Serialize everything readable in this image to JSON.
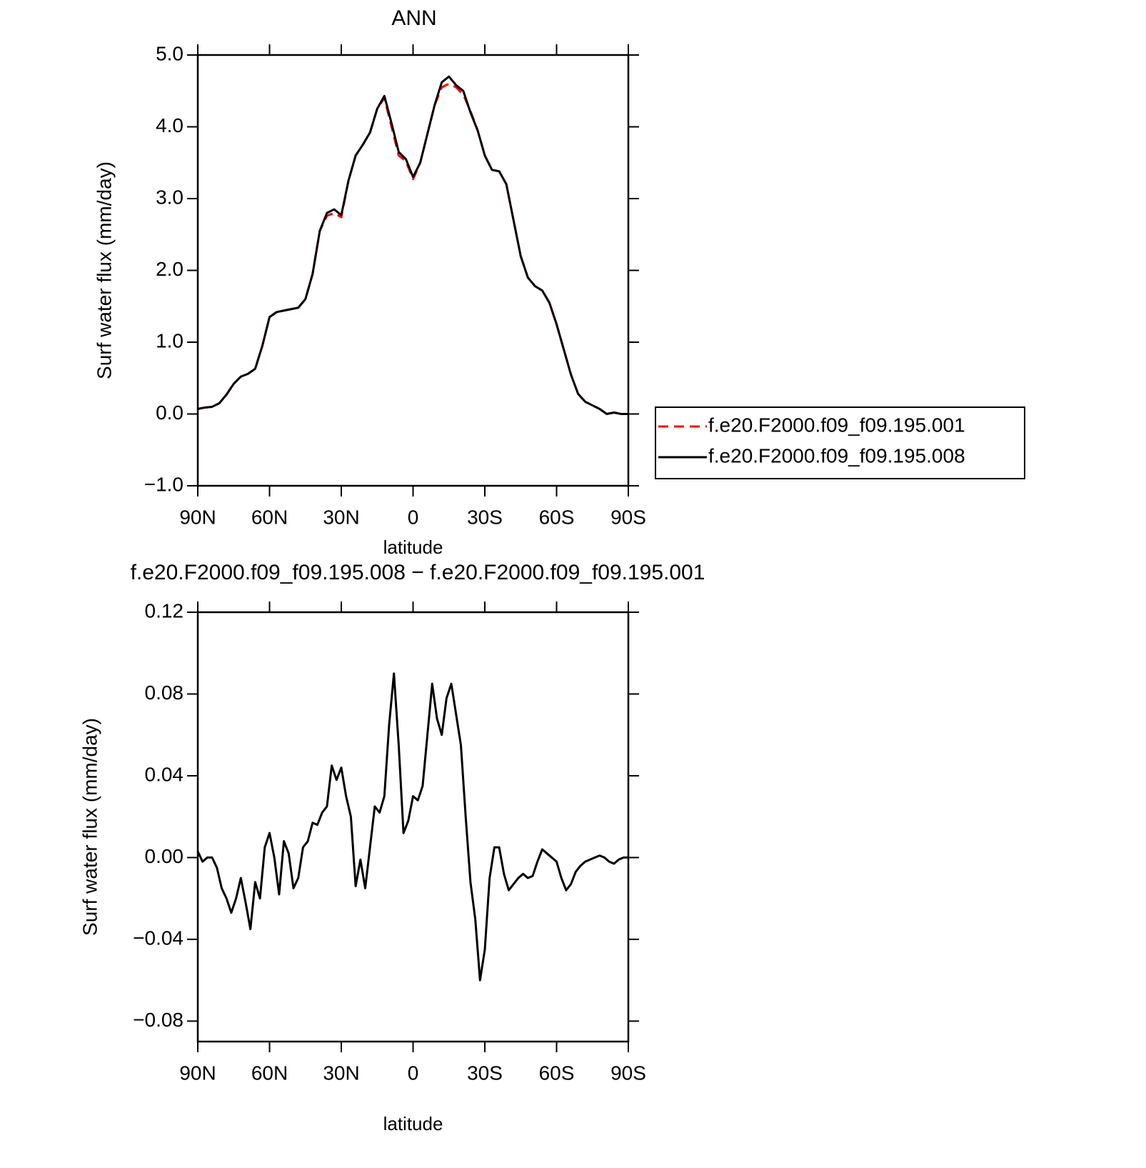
{
  "chart_data": [
    {
      "type": "line",
      "title": "ANN",
      "xlabel": "latitude",
      "ylabel": "Surf water flux (mm/day)",
      "x": [
        90,
        87,
        84,
        81,
        78,
        75,
        72,
        69,
        66,
        63,
        60,
        57,
        54,
        51,
        48,
        45,
        42,
        39,
        36,
        33,
        30,
        27,
        24,
        21,
        18,
        15,
        12,
        9,
        6,
        3,
        0,
        -3,
        -6,
        -9,
        -12,
        -15,
        -18,
        -21,
        -24,
        -27,
        -30,
        -33,
        -36,
        -39,
        -42,
        -45,
        -48,
        -51,
        -54,
        -57,
        -60,
        -63,
        -66,
        -69,
        -72,
        -75,
        -78,
        -81,
        -84,
        -87,
        -90
      ],
      "series": [
        {
          "name": "f.e20.F2000.f09_f09.195.001",
          "color": "#ff0000",
          "dash": "dashed",
          "values": [
            0.07,
            0.09,
            0.1,
            0.15,
            0.27,
            0.42,
            0.52,
            0.56,
            0.63,
            0.95,
            1.35,
            1.42,
            1.44,
            1.46,
            1.48,
            1.6,
            1.95,
            2.55,
            2.76,
            2.8,
            2.74,
            3.25,
            3.6,
            3.75,
            3.92,
            4.25,
            4.4,
            4.0,
            3.6,
            3.52,
            3.27,
            3.5,
            3.9,
            4.3,
            4.55,
            4.6,
            4.55,
            4.45,
            4.22,
            3.95,
            3.6,
            3.4,
            3.38,
            3.2,
            2.7,
            2.2,
            1.9,
            1.78,
            1.72,
            1.55,
            1.25,
            0.9,
            0.55,
            0.28,
            0.17,
            0.12,
            0.07,
            0.0,
            0.02,
            0.0,
            0.0
          ]
        },
        {
          "name": "f.e20.F2000.f09_f09.195.008",
          "color": "#000000",
          "dash": "solid",
          "values": [
            0.07,
            0.09,
            0.1,
            0.15,
            0.27,
            0.42,
            0.52,
            0.56,
            0.63,
            0.95,
            1.35,
            1.42,
            1.44,
            1.46,
            1.48,
            1.6,
            1.95,
            2.55,
            2.8,
            2.85,
            2.77,
            3.25,
            3.6,
            3.75,
            3.92,
            4.25,
            4.43,
            4.05,
            3.65,
            3.55,
            3.3,
            3.5,
            3.9,
            4.3,
            4.62,
            4.7,
            4.58,
            4.5,
            4.2,
            3.95,
            3.6,
            3.4,
            3.38,
            3.2,
            2.7,
            2.2,
            1.9,
            1.78,
            1.72,
            1.55,
            1.25,
            0.9,
            0.55,
            0.28,
            0.17,
            0.12,
            0.07,
            0.0,
            0.02,
            0.0,
            0.0
          ]
        }
      ],
      "xlim": [
        90,
        -90
      ],
      "xticks": [
        {
          "value": 90,
          "label": "90N"
        },
        {
          "value": 60,
          "label": "60N"
        },
        {
          "value": 30,
          "label": "30N"
        },
        0,
        {
          "value": -30,
          "label": "30S"
        },
        {
          "value": -60,
          "label": "60S"
        },
        {
          "value": -90,
          "label": "90S"
        }
      ],
      "ylim": [
        -1,
        5
      ],
      "yticks": [
        {
          "value": 5,
          "label": "5.0"
        },
        {
          "value": 4,
          "label": "4.0"
        },
        {
          "value": 3,
          "label": "3.0"
        },
        {
          "value": 2,
          "label": "2.0"
        },
        {
          "value": 1,
          "label": "1.0"
        },
        {
          "value": 0,
          "label": "0.0"
        },
        {
          "value": -1,
          "label": "−1.0"
        }
      ],
      "legend": "outside-right"
    },
    {
      "type": "line",
      "title": "f.e20.F2000.f09_f09.195.008 − f.e20.F2000.f09_f09.195.001",
      "xlabel": "latitude",
      "ylabel": "Surf water flux (mm/day)",
      "x": [
        90,
        88,
        86,
        84,
        82,
        80,
        78,
        76,
        74,
        72,
        70,
        68,
        66,
        64,
        62,
        60,
        58,
        56,
        54,
        52,
        50,
        48,
        46,
        44,
        42,
        40,
        38,
        36,
        34,
        32,
        30,
        28,
        26,
        24,
        22,
        20,
        18,
        16,
        14,
        12,
        10,
        8,
        6,
        4,
        2,
        0,
        -2,
        -4,
        -6,
        -8,
        -10,
        -12,
        -14,
        -16,
        -18,
        -20,
        -22,
        -24,
        -26,
        -28,
        -30,
        -32,
        -34,
        -36,
        -38,
        -40,
        -42,
        -44,
        -46,
        -48,
        -50,
        -52,
        -54,
        -56,
        -58,
        -60,
        -62,
        -64,
        -66,
        -68,
        -70,
        -72,
        -74,
        -76,
        -78,
        -80,
        -82,
        -84,
        -86,
        -88,
        -90
      ],
      "series": [
        {
          "color": "#000000",
          "dash": "solid",
          "values": [
            0.003,
            -0.002,
            0,
            0,
            -0.005,
            -0.015,
            -0.02,
            -0.027,
            -0.02,
            -0.01,
            -0.022,
            -0.035,
            -0.012,
            -0.02,
            0.005,
            0.012,
            0,
            -0.018,
            0.008,
            0.002,
            -0.015,
            -0.01,
            0.005,
            0.008,
            0.017,
            0.016,
            0.022,
            0.025,
            0.045,
            0.038,
            0.044,
            0.03,
            0.02,
            -0.014,
            -0.001,
            -0.015,
            0.005,
            0.025,
            0.022,
            0.03,
            0.065,
            0.09,
            0.055,
            0.012,
            0.018,
            0.03,
            0.028,
            0.035,
            0.06,
            0.085,
            0.068,
            0.06,
            0.078,
            0.085,
            0.07,
            0.055,
            0.02,
            -0.012,
            -0.03,
            -0.06,
            -0.045,
            -0.01,
            0.005,
            0.005,
            -0.008,
            -0.016,
            -0.013,
            -0.01,
            -0.008,
            -0.01,
            -0.009,
            -0.002,
            0.004,
            0.002,
            0,
            -0.002,
            -0.01,
            -0.016,
            -0.013,
            -0.007,
            -0.004,
            -0.002,
            -0.001,
            0,
            0.001,
            0,
            -0.002,
            -0.003,
            -0.001,
            0,
            0
          ]
        }
      ],
      "xlim": [
        90,
        -90
      ],
      "xticks": [
        {
          "value": 90,
          "label": "90N"
        },
        {
          "value": 60,
          "label": "60N"
        },
        {
          "value": 30,
          "label": "30N"
        },
        0,
        {
          "value": -30,
          "label": "30S"
        },
        {
          "value": -60,
          "label": "60S"
        },
        {
          "value": -90,
          "label": "90S"
        }
      ],
      "ylim": [
        -0.09,
        0.12
      ],
      "yticks": [
        0.12,
        0.08,
        0.04,
        {
          "value": 0,
          "label": "0.00"
        },
        {
          "value": -0.04,
          "label": "−0.04"
        },
        {
          "value": -0.08,
          "label": "−0.08"
        }
      ]
    }
  ]
}
